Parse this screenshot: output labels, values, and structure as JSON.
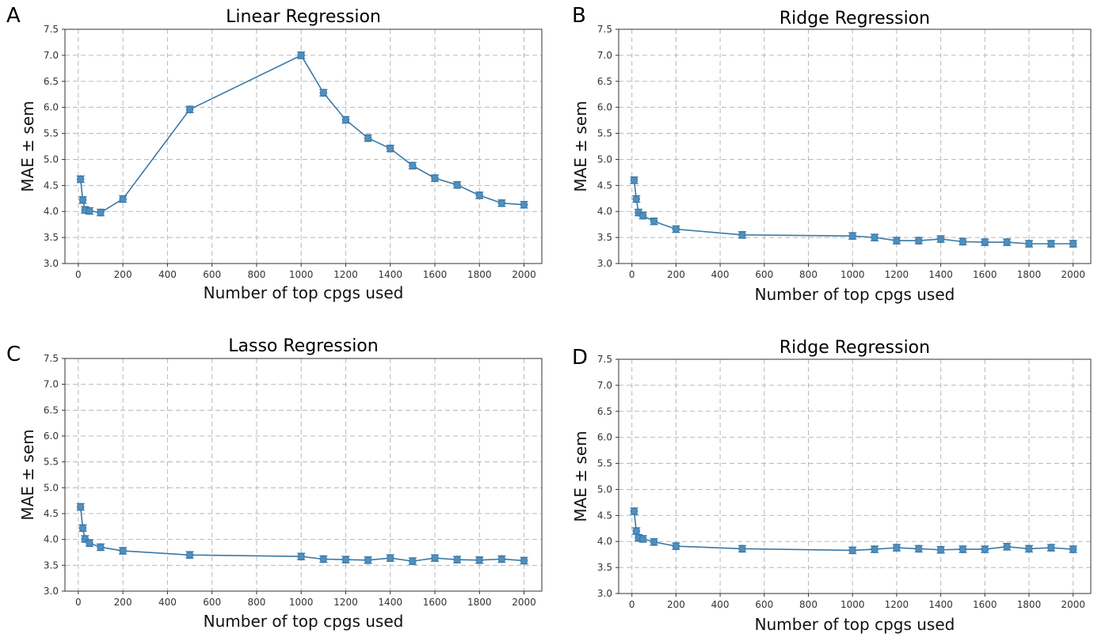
{
  "colors": {
    "series": "#3a78a6",
    "marker": "#4f8fbf"
  },
  "chart_data": [
    {
      "panel": "A",
      "type": "line",
      "title": "Linear Regression",
      "xlabel": "Number of top cpgs used",
      "ylabel": "MAE ± sem",
      "xlim": [
        -60,
        2080
      ],
      "ylim": [
        3.0,
        7.5
      ],
      "xticks": [
        0,
        200,
        400,
        600,
        800,
        1000,
        1200,
        1400,
        1600,
        1800,
        2000
      ],
      "yticks": [
        3.0,
        3.5,
        4.0,
        4.5,
        5.0,
        5.5,
        6.0,
        6.5,
        7.0,
        7.5
      ],
      "grid": true,
      "x": [
        10,
        20,
        30,
        50,
        100,
        200,
        500,
        1000,
        1100,
        1200,
        1300,
        1400,
        1500,
        1600,
        1700,
        1800,
        1900,
        2000
      ],
      "values": [
        4.62,
        4.22,
        4.03,
        4.01,
        3.98,
        4.24,
        5.96,
        7.0,
        6.28,
        5.76,
        5.41,
        5.21,
        4.88,
        4.64,
        4.51,
        4.31,
        4.16,
        4.13
      ]
    },
    {
      "panel": "B",
      "type": "line",
      "title": "Ridge Regression",
      "xlabel": "Number of top cpgs used",
      "ylabel": "MAE ± sem",
      "xlim": [
        -60,
        2080
      ],
      "ylim": [
        3.0,
        7.5
      ],
      "xticks": [
        0,
        200,
        400,
        600,
        800,
        1000,
        1200,
        1400,
        1600,
        1800,
        2000
      ],
      "yticks": [
        3.0,
        3.5,
        4.0,
        4.5,
        5.0,
        5.5,
        6.0,
        6.5,
        7.0,
        7.5
      ],
      "grid": true,
      "x": [
        10,
        20,
        30,
        50,
        100,
        200,
        500,
        1000,
        1100,
        1200,
        1300,
        1400,
        1500,
        1600,
        1700,
        1800,
        1900,
        2000
      ],
      "values": [
        4.6,
        4.24,
        3.98,
        3.92,
        3.81,
        3.66,
        3.55,
        3.53,
        3.5,
        3.44,
        3.44,
        3.47,
        3.42,
        3.41,
        3.41,
        3.38,
        3.38,
        3.38
      ]
    },
    {
      "panel": "C",
      "type": "line",
      "title": "Lasso Regression",
      "xlabel": "Number of top cpgs used",
      "ylabel": "MAE ± sem",
      "xlim": [
        -60,
        2080
      ],
      "ylim": [
        3.0,
        7.5
      ],
      "xticks": [
        0,
        200,
        400,
        600,
        800,
        1000,
        1200,
        1400,
        1600,
        1800,
        2000
      ],
      "yticks": [
        3.0,
        3.5,
        4.0,
        4.5,
        5.0,
        5.5,
        6.0,
        6.5,
        7.0,
        7.5
      ],
      "grid": true,
      "x": [
        10,
        20,
        30,
        50,
        100,
        200,
        500,
        1000,
        1100,
        1200,
        1300,
        1400,
        1500,
        1600,
        1700,
        1800,
        1900,
        2000
      ],
      "values": [
        4.63,
        4.22,
        4.01,
        3.93,
        3.85,
        3.78,
        3.7,
        3.67,
        3.62,
        3.61,
        3.6,
        3.64,
        3.58,
        3.64,
        3.61,
        3.6,
        3.62,
        3.59
      ]
    },
    {
      "panel": "D",
      "type": "line",
      "title": "Ridge Regression",
      "xlabel": "Number of top cpgs used",
      "ylabel": "MAE ± sem",
      "xlim": [
        -60,
        2080
      ],
      "ylim": [
        3.0,
        7.5
      ],
      "xticks": [
        0,
        200,
        400,
        600,
        800,
        1000,
        1200,
        1400,
        1600,
        1800,
        2000
      ],
      "yticks": [
        3.0,
        3.5,
        4.0,
        4.5,
        5.0,
        5.5,
        6.0,
        6.5,
        7.0,
        7.5
      ],
      "grid": true,
      "x": [
        10,
        20,
        30,
        50,
        100,
        200,
        500,
        1000,
        1100,
        1200,
        1300,
        1400,
        1500,
        1600,
        1700,
        1800,
        1900,
        2000
      ],
      "values": [
        4.58,
        4.2,
        4.07,
        4.05,
        3.99,
        3.91,
        3.86,
        3.83,
        3.85,
        3.88,
        3.86,
        3.84,
        3.85,
        3.85,
        3.9,
        3.86,
        3.88,
        3.85
      ]
    }
  ]
}
